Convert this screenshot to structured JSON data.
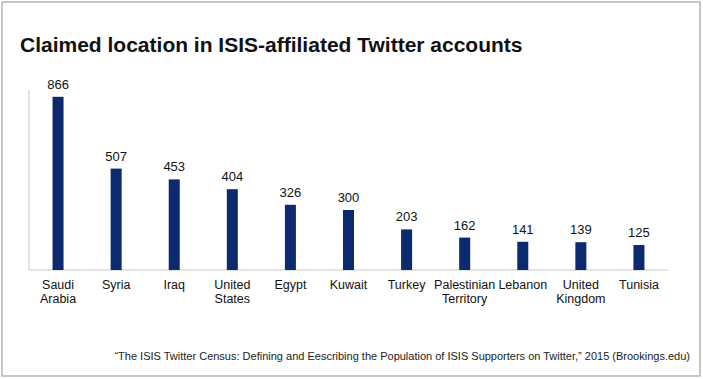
{
  "chart_data": {
    "type": "bar",
    "title": "Claimed location in ISIS-affiliated Twitter accounts",
    "categories": [
      "Saudi Arabia",
      "Syria",
      "Iraq",
      "United States",
      "Egypt",
      "Kuwait",
      "Turkey",
      "Palestinian Territory",
      "Lebanon",
      "United Kingdom",
      "Tunisia"
    ],
    "values": [
      866,
      507,
      453,
      404,
      326,
      300,
      203,
      162,
      141,
      139,
      125
    ],
    "color": "#0b2a6f",
    "ylim": [
      0,
      900
    ],
    "grid": false,
    "data_labels": true,
    "tick_labels": "x",
    "annotations": [
      "“The ISIS Twitter Census: Defining and Eescribing the Population of ISIS Supporters on Twitter,” 2015 (Brookings.edu)"
    ]
  }
}
